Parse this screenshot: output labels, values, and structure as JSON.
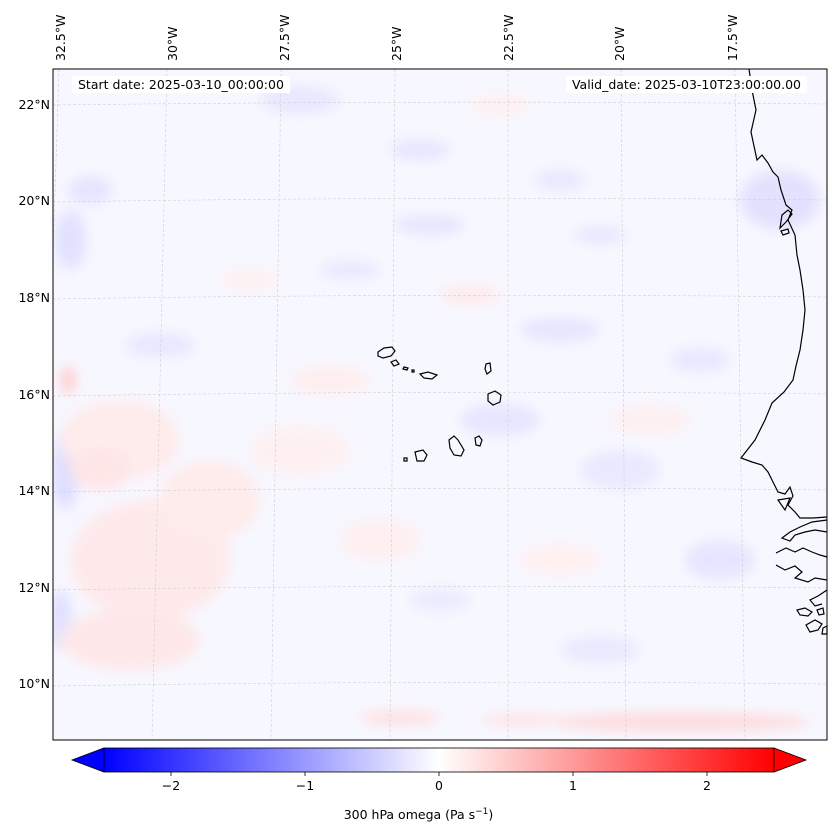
{
  "annotations": {
    "start_date": "Start date: 2025-03-10_00:00:00",
    "valid_date": "Valid_date: 2025-03-10T23:00:00.00"
  },
  "map": {
    "longitude_labels": [
      "32.5°W",
      "30°W",
      "27.5°W",
      "25°W",
      "22.5°W",
      "20°W",
      "17.5°W"
    ],
    "latitude_labels": [
      "22°N",
      "20°N",
      "18°N",
      "16°N",
      "14°N",
      "12°N",
      "10°N"
    ],
    "extent": {
      "lon_min": -32.7,
      "lon_max": -15.7,
      "lat_min": 8.9,
      "lat_max": 22.8
    },
    "coastline_color": "#000000",
    "gridline_color": "#cccccc",
    "field": "300 hPa omega",
    "colormap": "bwr"
  },
  "colorbar": {
    "label_prefix": "300 hPa omega (Pa s",
    "label_exponent": "−1",
    "label_suffix": ")",
    "ticks": [
      "−2",
      "−1",
      "0",
      "1",
      "2"
    ],
    "tick_values": [
      -2,
      -1,
      0,
      1,
      2
    ],
    "range": [
      -2.5,
      2.5
    ],
    "extend": "both",
    "color_min": "#0000ff",
    "color_mid": "#ffffff",
    "color_max": "#ff0000"
  }
}
